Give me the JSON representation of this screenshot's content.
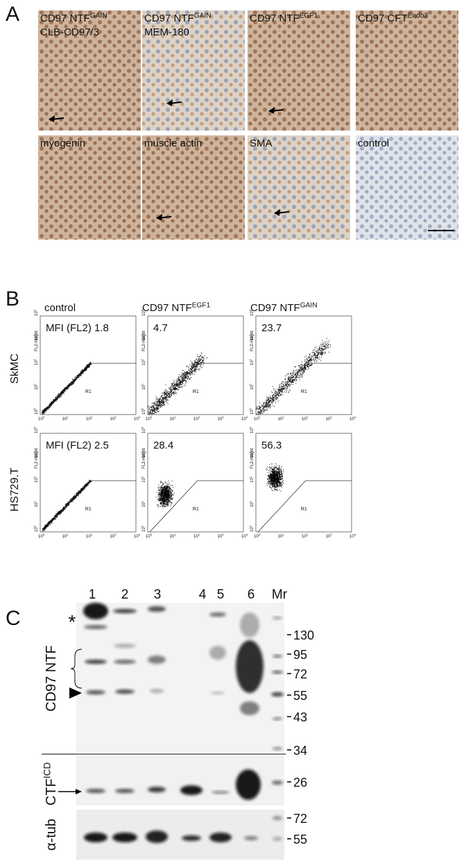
{
  "panel_a": {
    "label": "A",
    "images": [
      {
        "title": "CD97 NTF",
        "title_sup": "GAIN",
        "subtitle": "CLB-CD97/3"
      },
      {
        "title": "CD97 NTF",
        "title_sup": "GAIN",
        "subtitle": "MEM-180"
      },
      {
        "title": "CD97 NTF",
        "title_sup": "EGF1"
      },
      {
        "title": "CD97 CFT",
        "title_sup": "Endo3"
      },
      {
        "title": "myogenin"
      },
      {
        "title": "muscle actin"
      },
      {
        "title": "SMA"
      },
      {
        "title": "control"
      }
    ]
  },
  "panel_b": {
    "label": "B",
    "columns": [
      {
        "text": "control"
      },
      {
        "text": "CD97 NTF",
        "sup": "EGF1"
      },
      {
        "text": "CD97 NTF",
        "sup": "GAIN"
      }
    ],
    "rows": [
      {
        "label": "SkMC",
        "mfi": [
          "MFI (FL2) 1.8",
          "4.7",
          "23.7"
        ]
      },
      {
        "label": "HS729.T",
        "mfi": [
          "MFI (FL2) 2.5",
          "28.4",
          "56.3"
        ]
      }
    ],
    "gate_label": "R1",
    "y_axis_label": "FL2-Height",
    "ticks": [
      {
        "base": "10",
        "exp": "0"
      },
      {
        "base": "10",
        "exp": "1"
      },
      {
        "base": "10",
        "exp": "2"
      },
      {
        "base": "10",
        "exp": "3"
      },
      {
        "base": "10",
        "exp": "4"
      }
    ]
  },
  "panel_c": {
    "label": "C",
    "lanes": [
      "1",
      "2",
      "3",
      "4",
      "5",
      "6",
      "Mr"
    ],
    "markers_top": [
      "130",
      "95",
      "72",
      "55",
      "43",
      "34",
      "26"
    ],
    "markers_bottom": [
      "72",
      "55"
    ],
    "ntf_label": "CD97 NTF",
    "ctf_label": "CTF",
    "ctf_sup": "ICD",
    "tub_label": "α-tub",
    "asterisk": "*"
  }
}
